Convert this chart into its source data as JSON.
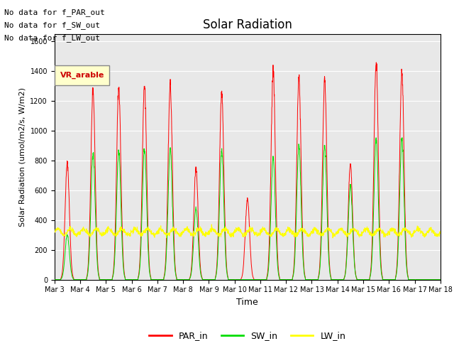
{
  "title": "Solar Radiation",
  "ylabel": "Solar Radiation (umol/m2/s, W/m2)",
  "xlabel": "Time",
  "ylim": [
    0,
    1650
  ],
  "yticks": [
    0,
    200,
    400,
    600,
    800,
    1000,
    1200,
    1400,
    1600
  ],
  "xtick_labels": [
    "Mar 3",
    "Mar 4",
    "Mar 5",
    "Mar 6",
    "Mar 7",
    "Mar 8",
    "Mar 9",
    "Mar 10",
    "Mar 11",
    "Mar 12",
    "Mar 13",
    "Mar 14",
    "Mar 15",
    "Mar 16",
    "Mar 17",
    "Mar 18"
  ],
  "annotations": [
    "No data for f_PAR_out",
    "No data for f_SW_out",
    "No data for f_LW_out"
  ],
  "legend_label": "VR_arable",
  "legend_items": [
    "PAR_in",
    "SW_in",
    "LW_in"
  ],
  "par_color": "#ff0000",
  "sw_color": "#00dd00",
  "lw_color": "#ffff00",
  "bg_color": "#e8e8e8",
  "grid_color": "#ffffff",
  "n_days": 15,
  "samples_per_day": 144,
  "day_par_peaks": [
    780,
    1280,
    1290,
    1310,
    1310,
    750,
    1260,
    540,
    1400,
    1350,
    1350,
    780,
    1470,
    1400,
    0
  ],
  "day_sw_peaks": [
    300,
    850,
    860,
    880,
    880,
    480,
    870,
    0,
    820,
    900,
    900,
    630,
    950,
    950,
    0
  ],
  "lw_base": 320,
  "ann_fontsize": 8,
  "title_fontsize": 12,
  "tick_fontsize": 7,
  "ylabel_fontsize": 8
}
